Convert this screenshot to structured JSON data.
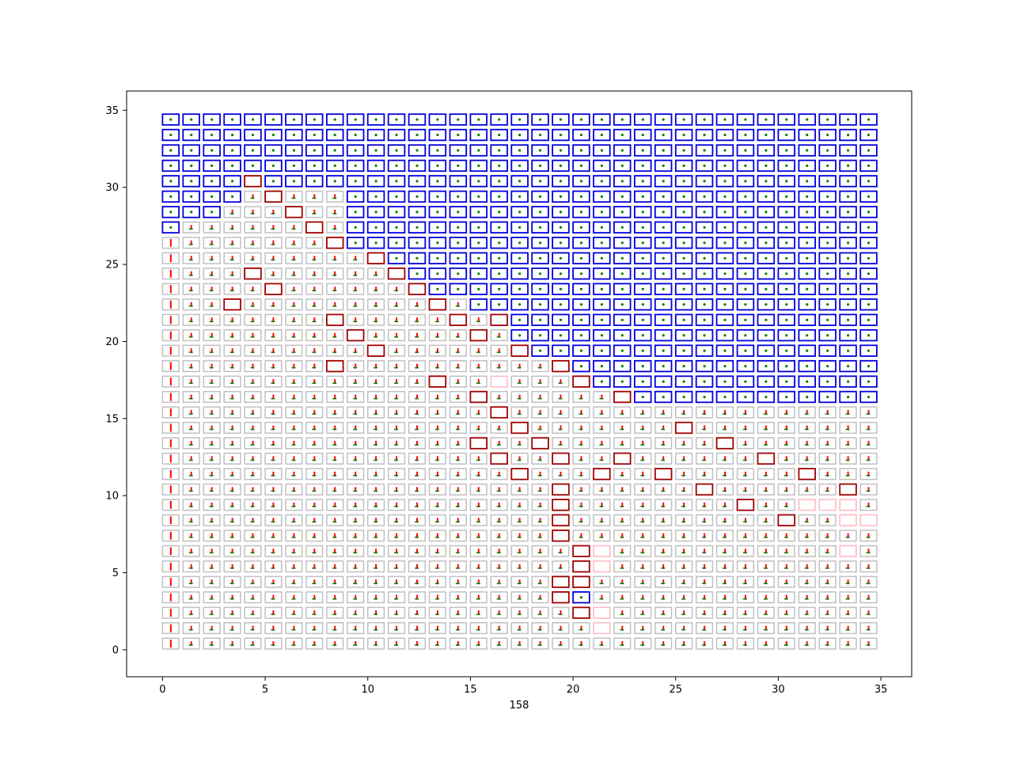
{
  "chart_data": {
    "type": "grid-map",
    "title": "",
    "xlabel": "158",
    "ylabel": "",
    "xlim": [
      -1.75,
      36.5
    ],
    "ylim": [
      -1.75,
      36.25
    ],
    "grid": false,
    "x_ticks": [
      0,
      5,
      10,
      15,
      20,
      25,
      30,
      35
    ],
    "y_ticks": [
      0,
      5,
      10,
      15,
      20,
      25,
      30,
      35
    ],
    "grid_size": [
      35,
      35
    ],
    "cell_legend": {
      "gray": "#c0c0c0",
      "blue": "#0000dd",
      "dark_red": "#a00000",
      "pink": "#ffb6c1"
    },
    "arrow_colors": {
      "primary": "#ff0000",
      "secondary": "#008000"
    },
    "blue_cells_rows": [
      {
        "row": 34,
        "from_col": 0,
        "to_col": 34
      },
      {
        "row": 33,
        "from_col": 0,
        "to_col": 34
      },
      {
        "row": 32,
        "from_col": 0,
        "to_col": 34
      },
      {
        "row": 31,
        "from_col": 0,
        "to_col": 34
      },
      {
        "row": 30,
        "from_col": 0,
        "to_col": 34
      },
      {
        "row": 29,
        "from_col": 0,
        "to_col": 34
      },
      {
        "row": 28,
        "from_col": 0,
        "to_col": 34
      },
      {
        "row": 27,
        "from_col": 0,
        "to_col": 34
      },
      {
        "row": 26,
        "from_col": 9,
        "to_col": 34
      },
      {
        "row": 25,
        "from_col": 11,
        "to_col": 34
      },
      {
        "row": 24,
        "from_col": 12,
        "to_col": 34
      },
      {
        "row": 23,
        "from_col": 13,
        "to_col": 34
      },
      {
        "row": 22,
        "from_col": 15,
        "to_col": 34
      },
      {
        "row": 21,
        "from_col": 16,
        "to_col": 34
      },
      {
        "row": 20,
        "from_col": 17,
        "to_col": 34
      },
      {
        "row": 19,
        "from_col": 18,
        "to_col": 34
      },
      {
        "row": 18,
        "from_col": 20,
        "to_col": 34
      },
      {
        "row": 17,
        "from_col": 21,
        "to_col": 34
      },
      {
        "row": 16,
        "from_col": 23,
        "to_col": 34
      }
    ],
    "gray_exceptions": [
      [
        4,
        29
      ],
      [
        5,
        29
      ],
      [
        6,
        29
      ],
      [
        7,
        29
      ],
      [
        8,
        29
      ],
      [
        3,
        28
      ],
      [
        4,
        28
      ],
      [
        5,
        28
      ],
      [
        6,
        28
      ],
      [
        7,
        28
      ],
      [
        8,
        28
      ],
      [
        1,
        27
      ],
      [
        2,
        27
      ],
      [
        3,
        27
      ],
      [
        4,
        27
      ],
      [
        5,
        27
      ],
      [
        6,
        27
      ],
      [
        7,
        27
      ],
      [
        8,
        27
      ]
    ],
    "dark_red_cells": [
      [
        4,
        30
      ],
      [
        5,
        29
      ],
      [
        6,
        28
      ],
      [
        7,
        27
      ],
      [
        8,
        26
      ],
      [
        10,
        25
      ],
      [
        11,
        24
      ],
      [
        4,
        24
      ],
      [
        5,
        23
      ],
      [
        12,
        23
      ],
      [
        3,
        22
      ],
      [
        13,
        22
      ],
      [
        8,
        21
      ],
      [
        14,
        21
      ],
      [
        9,
        20
      ],
      [
        15,
        20
      ],
      [
        16,
        21
      ],
      [
        10,
        19
      ],
      [
        17,
        19
      ],
      [
        8,
        18
      ],
      [
        19,
        18
      ],
      [
        13,
        17
      ],
      [
        20,
        17
      ],
      [
        15,
        16
      ],
      [
        22,
        16
      ],
      [
        16,
        15
      ],
      [
        17,
        14
      ],
      [
        15,
        13
      ],
      [
        18,
        13
      ],
      [
        16,
        12
      ],
      [
        19,
        12
      ],
      [
        22,
        12
      ],
      [
        17,
        11
      ],
      [
        21,
        11
      ],
      [
        19,
        10
      ],
      [
        19,
        9
      ],
      [
        19,
        8
      ],
      [
        19,
        7
      ],
      [
        20,
        6
      ],
      [
        20,
        5
      ],
      [
        19,
        4
      ],
      [
        20,
        4
      ],
      [
        19,
        3
      ],
      [
        20,
        2
      ],
      [
        25,
        14
      ],
      [
        27,
        13
      ],
      [
        29,
        12
      ],
      [
        24,
        11
      ],
      [
        31,
        11
      ],
      [
        26,
        10
      ],
      [
        33,
        10
      ],
      [
        28,
        9
      ],
      [
        30,
        8
      ]
    ],
    "pink_cells": [
      [
        16,
        17
      ],
      [
        21,
        6
      ],
      [
        21,
        5
      ],
      [
        21,
        2
      ],
      [
        21,
        1
      ],
      [
        31,
        9
      ],
      [
        32,
        9
      ],
      [
        33,
        9
      ],
      [
        34,
        8
      ],
      [
        33,
        8
      ],
      [
        33,
        6
      ]
    ],
    "extra_blue_cells": [
      [
        20,
        3
      ]
    ]
  }
}
